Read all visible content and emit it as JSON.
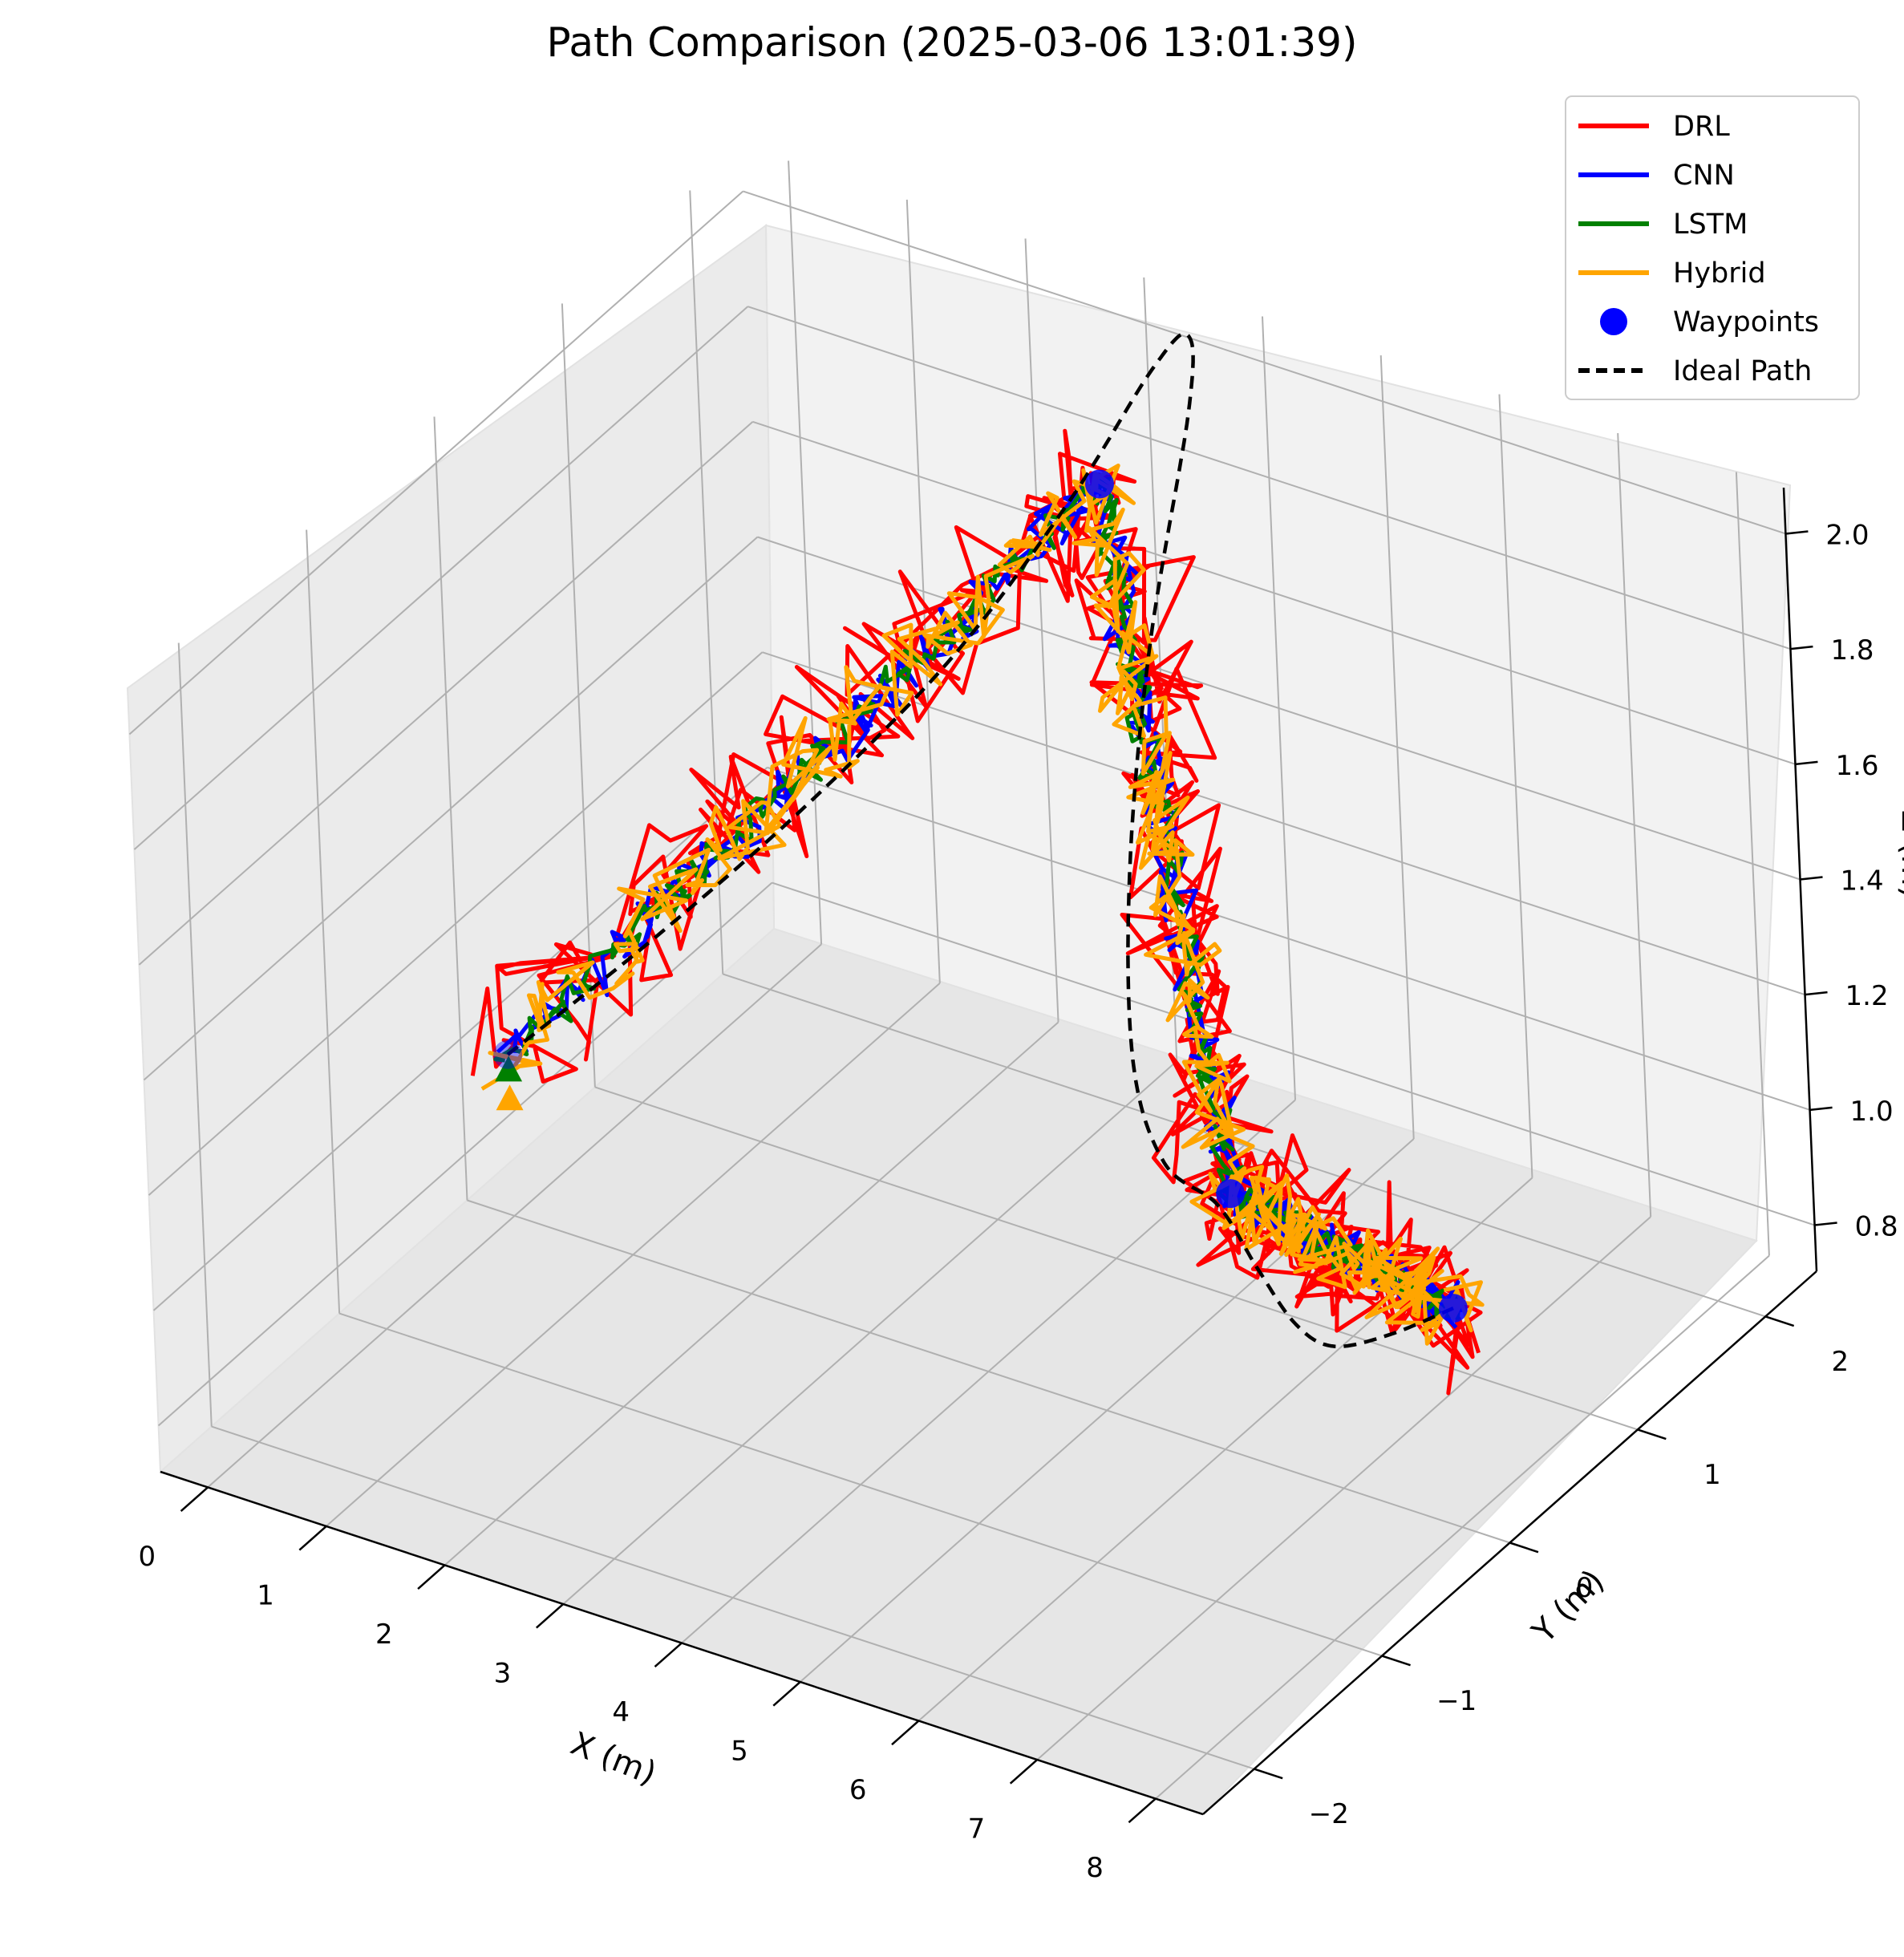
{
  "chart_data": {
    "type": "line",
    "title": "Path Comparison (2025-03-06 13:01:39)",
    "xlabel": "X (m)",
    "ylabel": "Y (m)",
    "zlabel": "Z (m)",
    "xlim": [
      -0.4,
      8.4
    ],
    "ylim": [
      -2.4,
      2.4
    ],
    "zlim": [
      0.72,
      2.08
    ],
    "xticks": [
      "0",
      "1",
      "2",
      "3",
      "4",
      "5",
      "6",
      "7",
      "8"
    ],
    "yticks": [
      "−2",
      "−1",
      "0",
      "1",
      "2"
    ],
    "zticks": [
      "0.8",
      "1.0",
      "1.2",
      "1.4",
      "1.6",
      "1.8",
      "2.0"
    ],
    "grid": true,
    "legend_position": "top-right",
    "waypoints": [
      {
        "x": 0,
        "y": 0,
        "z": 1.0
      },
      {
        "x": 3,
        "y": 2,
        "z": 1.8
      },
      {
        "x": 5,
        "y": 1,
        "z": 0.9
      },
      {
        "x": 8,
        "y": 0,
        "z": 1.1
      }
    ],
    "ideal_path": {
      "name": "Ideal Path",
      "color": "#000000",
      "style": "dashed",
      "points": [
        {
          "x": 0.0,
          "y": 0.0,
          "z": 1.0
        },
        {
          "x": 0.8,
          "y": 0.45,
          "z": 1.17
        },
        {
          "x": 1.6,
          "y": 0.95,
          "z": 1.36
        },
        {
          "x": 2.3,
          "y": 1.45,
          "z": 1.56
        },
        {
          "x": 2.85,
          "y": 1.9,
          "z": 1.78
        },
        {
          "x": 3.15,
          "y": 2.3,
          "z": 1.95
        },
        {
          "x": 3.3,
          "y": 2.45,
          "z": 1.99
        },
        {
          "x": 3.45,
          "y": 2.3,
          "z": 1.9
        },
        {
          "x": 3.6,
          "y": 1.8,
          "z": 1.6
        },
        {
          "x": 3.8,
          "y": 1.4,
          "z": 1.3
        },
        {
          "x": 4.1,
          "y": 1.1,
          "z": 1.05
        },
        {
          "x": 4.5,
          "y": 0.95,
          "z": 0.93
        },
        {
          "x": 5.0,
          "y": 0.9,
          "z": 0.9
        },
        {
          "x": 5.6,
          "y": 0.65,
          "z": 0.88
        },
        {
          "x": 6.3,
          "y": 0.3,
          "z": 0.9
        },
        {
          "x": 6.9,
          "y": 0.05,
          "z": 0.95
        },
        {
          "x": 7.5,
          "y": -0.05,
          "z": 1.03
        },
        {
          "x": 8.0,
          "y": 0.0,
          "z": 1.1
        }
      ]
    },
    "series": [
      {
        "name": "DRL",
        "color": "#ff0000",
        "noise": 0.06,
        "width": 5,
        "seed": 11
      },
      {
        "name": "CNN",
        "color": "#0000ff",
        "noise": 0.02,
        "width": 5,
        "seed": 23
      },
      {
        "name": "LSTM",
        "color": "#008000",
        "noise": 0.015,
        "width": 5,
        "seed": 37
      },
      {
        "name": "Hybrid",
        "color": "#ffa500",
        "noise": 0.035,
        "width": 5,
        "seed": 53
      }
    ],
    "legend": [
      {
        "label": "DRL",
        "color": "#ff0000",
        "kind": "line"
      },
      {
        "label": "CNN",
        "color": "#0000ff",
        "kind": "line"
      },
      {
        "label": "LSTM",
        "color": "#008000",
        "kind": "line"
      },
      {
        "label": "Hybrid",
        "color": "#ffa500",
        "kind": "line"
      },
      {
        "label": "Waypoints",
        "color": "#0000ff",
        "kind": "marker"
      },
      {
        "label": "Ideal Path",
        "color": "#000000",
        "kind": "dashed"
      }
    ]
  }
}
